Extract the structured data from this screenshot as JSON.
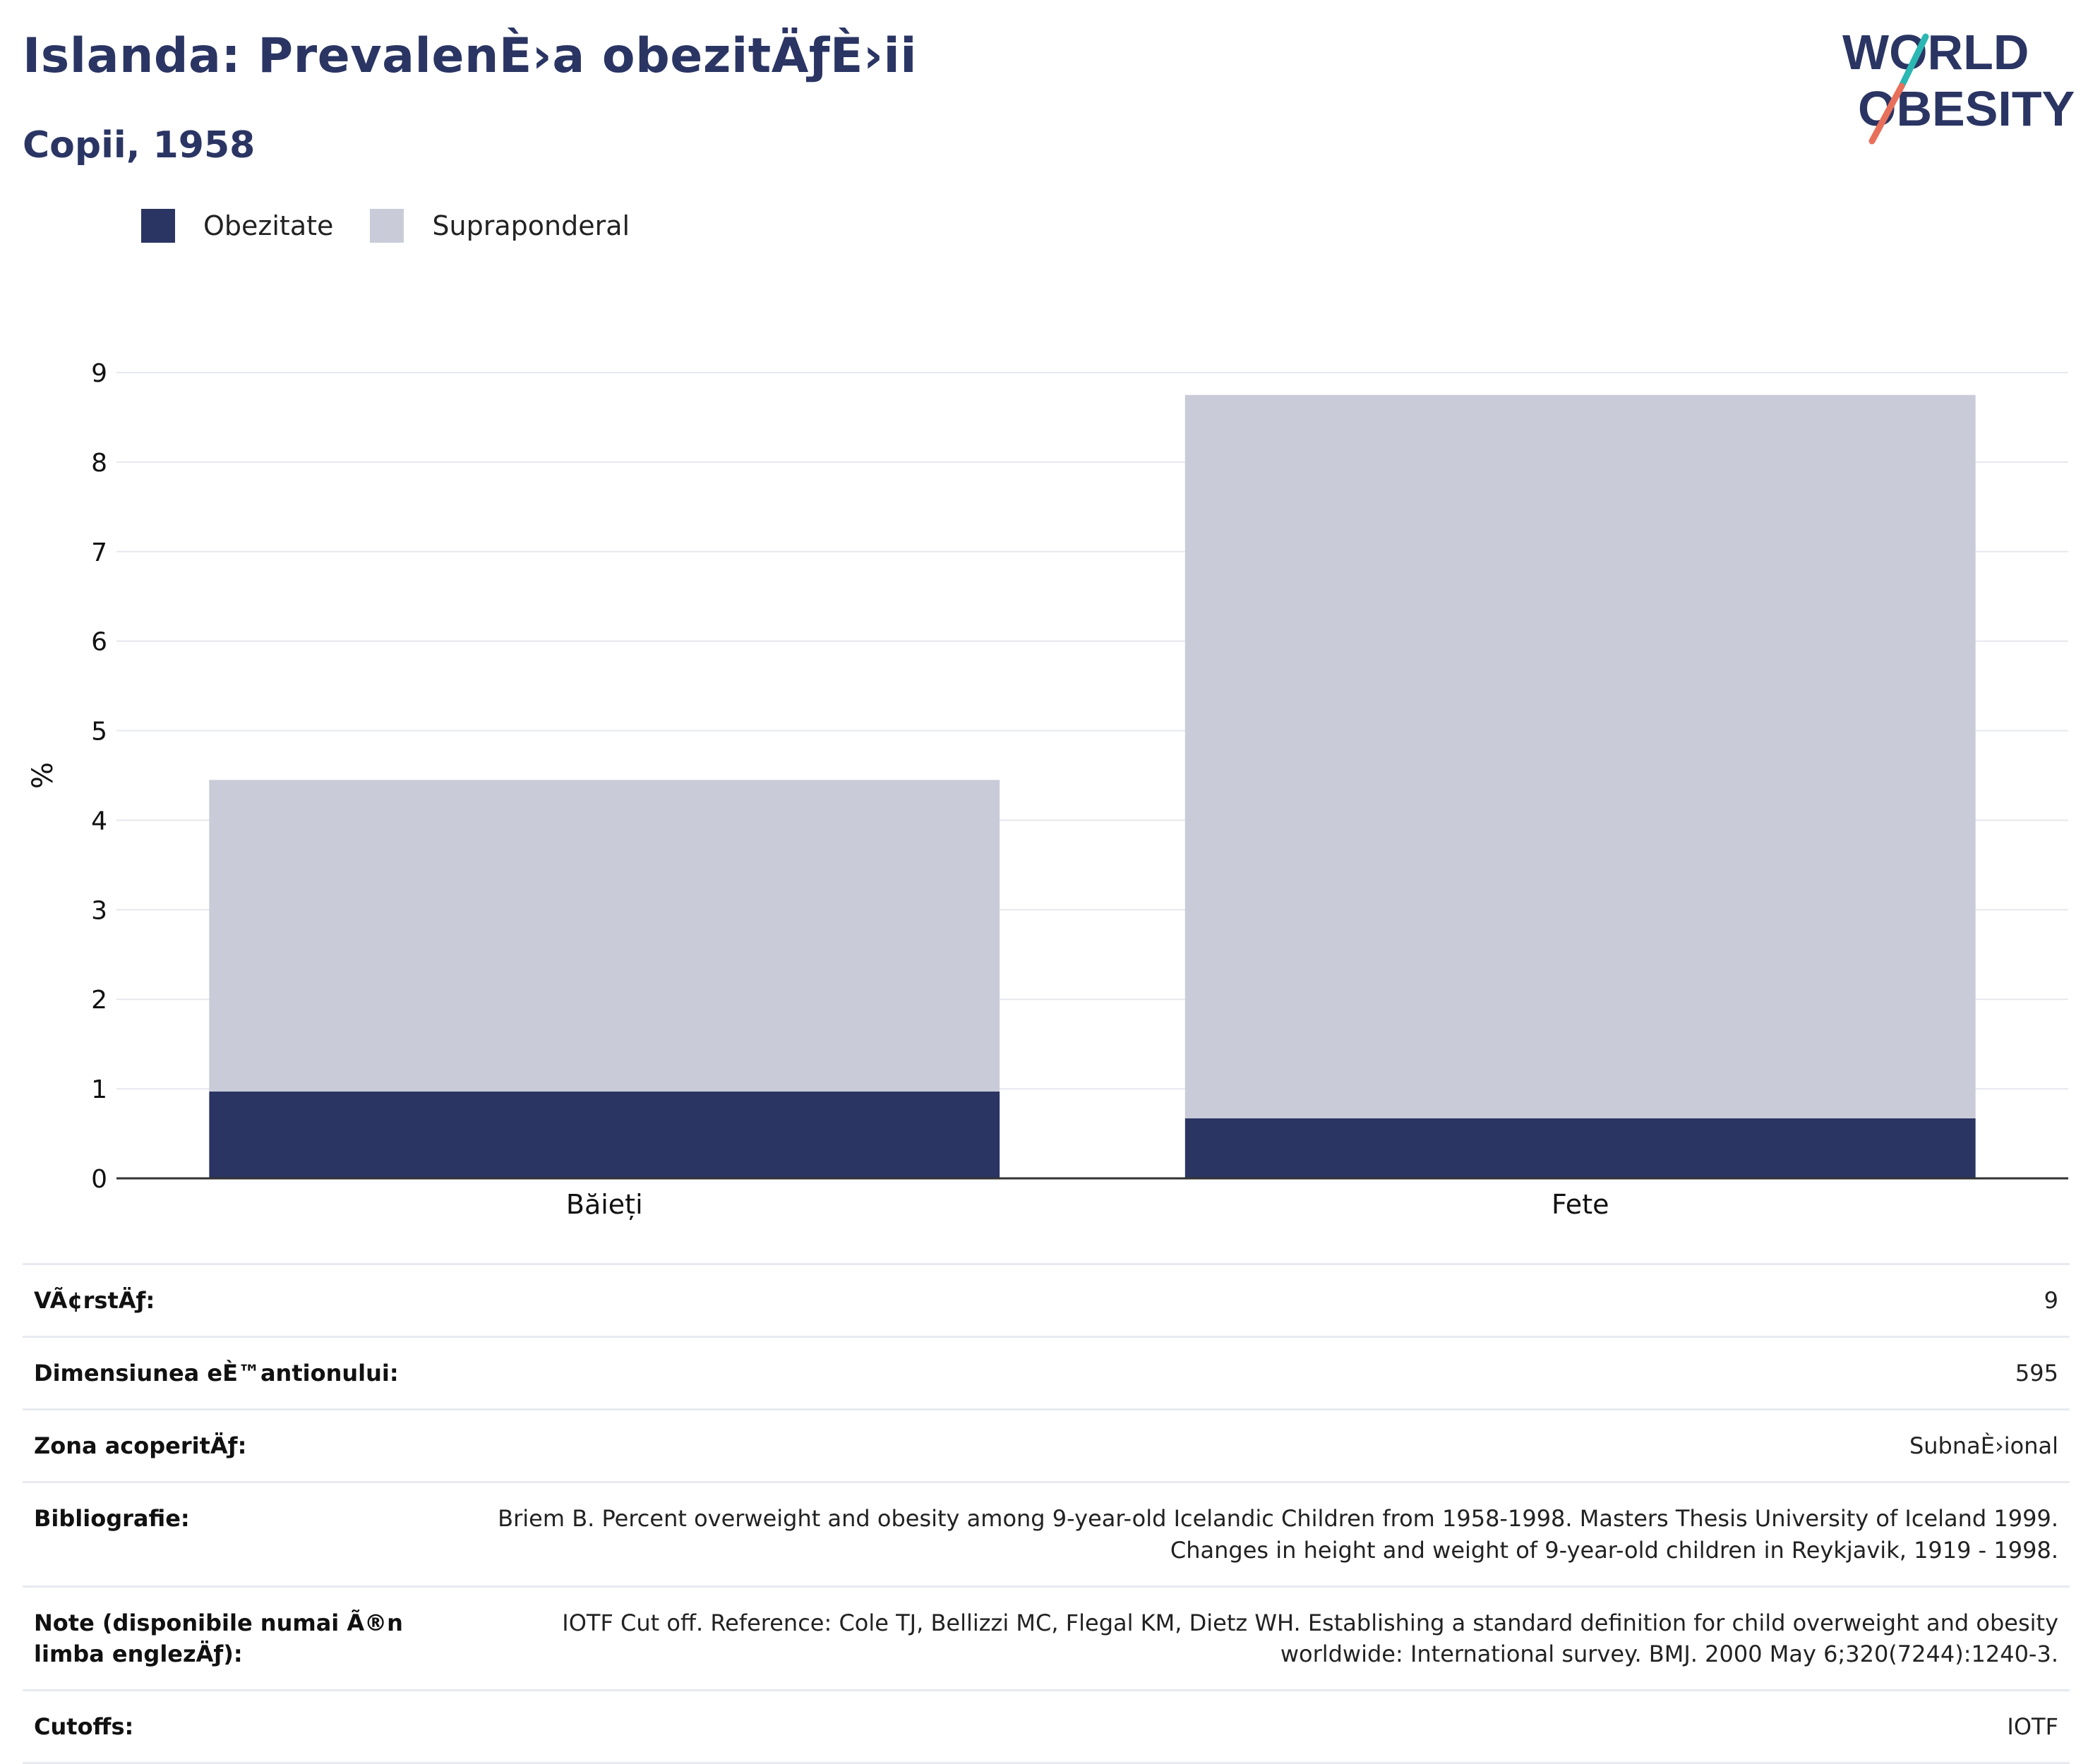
{
  "header": {
    "title": "Islanda: PrevalenÈ›a obezitÄƒÈ›ii",
    "subtitle": "Copii, 1958"
  },
  "logo": {
    "line1": "WORLD",
    "line2": "OBESITY"
  },
  "colors": {
    "obesity": "#2a3563",
    "overweight": "#c9ccd8",
    "text_dark": "#2a3563",
    "logo_teal": "#2bb7b3",
    "logo_coral": "#e8705a"
  },
  "chart_data": {
    "type": "bar",
    "stacked": true,
    "categories": [
      "Băieți",
      "Fete"
    ],
    "series": [
      {
        "name": "Obezitate",
        "values": [
          0.97,
          0.67
        ],
        "color": "#2a3563"
      },
      {
        "name": "Supraponderal",
        "values": [
          3.48,
          8.08
        ],
        "color": "#c9ccd8"
      }
    ],
    "ylabel": "%",
    "ylim": [
      0,
      9
    ],
    "yticks": [
      0,
      1,
      2,
      3,
      4,
      5,
      6,
      7,
      8,
      9
    ],
    "grid": true,
    "legend_position": "top-left"
  },
  "info": [
    {
      "key": "VÃ¢rstÄƒ:",
      "value": "9"
    },
    {
      "key": "Dimensiunea eÈ™antionului:",
      "value": "595"
    },
    {
      "key": "Zona acoperitÄƒ:",
      "value": "SubnaÈ›ional"
    },
    {
      "key": "Bibliografie:",
      "value": "Briem B. Percent overweight and obesity among 9-year-old Icelandic Children from 1958-1998. Masters Thesis University of Iceland 1999. Changes in height and weight of 9-year-old children in Reykjavik, 1919 - 1998."
    },
    {
      "key": "Note (disponibile numai Ã®n limba englezÄƒ):",
      "value": "IOTF Cut off. Reference: Cole TJ, Bellizzi MC, Flegal KM, Dietz WH. Establishing a standard definition for child overweight and obesity worldwide: International survey. BMJ. 2000 May 6;320(7244):1240-3."
    },
    {
      "key": "Cutoffs:",
      "value": "IOTF"
    }
  ]
}
